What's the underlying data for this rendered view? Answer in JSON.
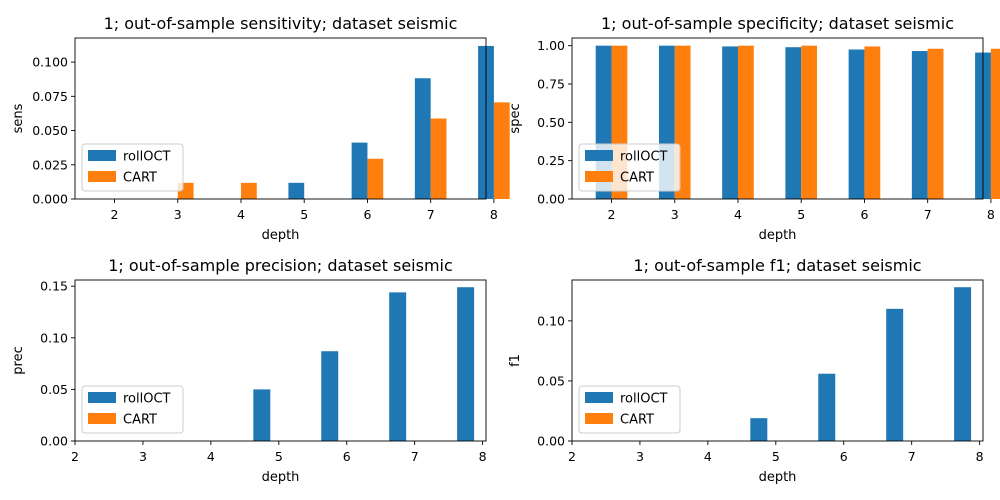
{
  "colors": {
    "rollOCT": "#1f77b4",
    "CART": "#ff7f0e"
  },
  "chart_data": [
    {
      "type": "bar",
      "title": "1; out-of-sample sensitivity; dataset seismic",
      "xlabel": "depth",
      "ylabel": "sens",
      "categories": [
        "2",
        "3",
        "4",
        "5",
        "6",
        "7",
        "8"
      ],
      "series": [
        {
          "name": "rollOCT",
          "values": [
            0.0,
            0.0,
            0.0,
            0.0118,
            0.0412,
            0.0882,
            0.1118
          ]
        },
        {
          "name": "CART",
          "values": [
            0.0,
            0.0118,
            0.0118,
            0.0,
            0.0294,
            0.0588,
            0.0706
          ]
        }
      ],
      "ylim": [
        0,
        0.1176
      ],
      "yticks": [
        "0.000",
        "0.025",
        "0.050",
        "0.075",
        "0.100"
      ],
      "legend": "lower left"
    },
    {
      "type": "bar",
      "title": "1; out-of-sample specificity; dataset seismic",
      "xlabel": "depth",
      "ylabel": "spec",
      "categories": [
        "2",
        "3",
        "4",
        "5",
        "6",
        "7",
        "8"
      ],
      "series": [
        {
          "name": "rollOCT",
          "values": [
            1.0,
            1.0,
            0.995,
            0.99,
            0.975,
            0.965,
            0.955
          ]
        },
        {
          "name": "CART",
          "values": [
            1.0,
            1.0,
            1.0,
            1.0,
            0.995,
            0.98,
            0.98
          ]
        }
      ],
      "ylim": [
        0,
        1.05
      ],
      "yticks": [
        "0.00",
        "0.25",
        "0.50",
        "0.75",
        "1.00"
      ],
      "legend": "lower left"
    },
    {
      "type": "bar",
      "title": "1; out-of-sample precision; dataset seismic",
      "xlabel": "depth",
      "ylabel": "prec",
      "categories": [
        "5",
        "6",
        "7",
        "8"
      ],
      "series": [
        {
          "name": "rollOCT",
          "x": [
            4.75,
            5.75,
            6.75,
            7.75
          ],
          "values": [
            0.05,
            0.087,
            0.144,
            0.149
          ]
        },
        {
          "name": "CART",
          "x": [],
          "values": []
        }
      ],
      "xlim": [
        2,
        8.05
      ],
      "xticks": [
        "2",
        "3",
        "4",
        "5",
        "6",
        "7",
        "8"
      ],
      "ylim": [
        0,
        0.156
      ],
      "yticks": [
        "0.00",
        "0.05",
        "0.10",
        "0.15"
      ],
      "legend": "lower left"
    },
    {
      "type": "bar",
      "title": "1; out-of-sample f1; dataset seismic",
      "xlabel": "depth",
      "ylabel": "f1",
      "categories": [
        "5",
        "6",
        "7",
        "8"
      ],
      "series": [
        {
          "name": "rollOCT",
          "x": [
            4.75,
            5.75,
            6.75,
            7.75
          ],
          "values": [
            0.019,
            0.056,
            0.11,
            0.128
          ]
        },
        {
          "name": "CART",
          "x": [],
          "values": []
        }
      ],
      "xlim": [
        2,
        8.05
      ],
      "xticks": [
        "2",
        "3",
        "4",
        "5",
        "6",
        "7",
        "8"
      ],
      "ylim": [
        0,
        0.134
      ],
      "yticks": [
        "0.00",
        "0.05",
        "0.10"
      ],
      "legend": "lower left"
    }
  ]
}
